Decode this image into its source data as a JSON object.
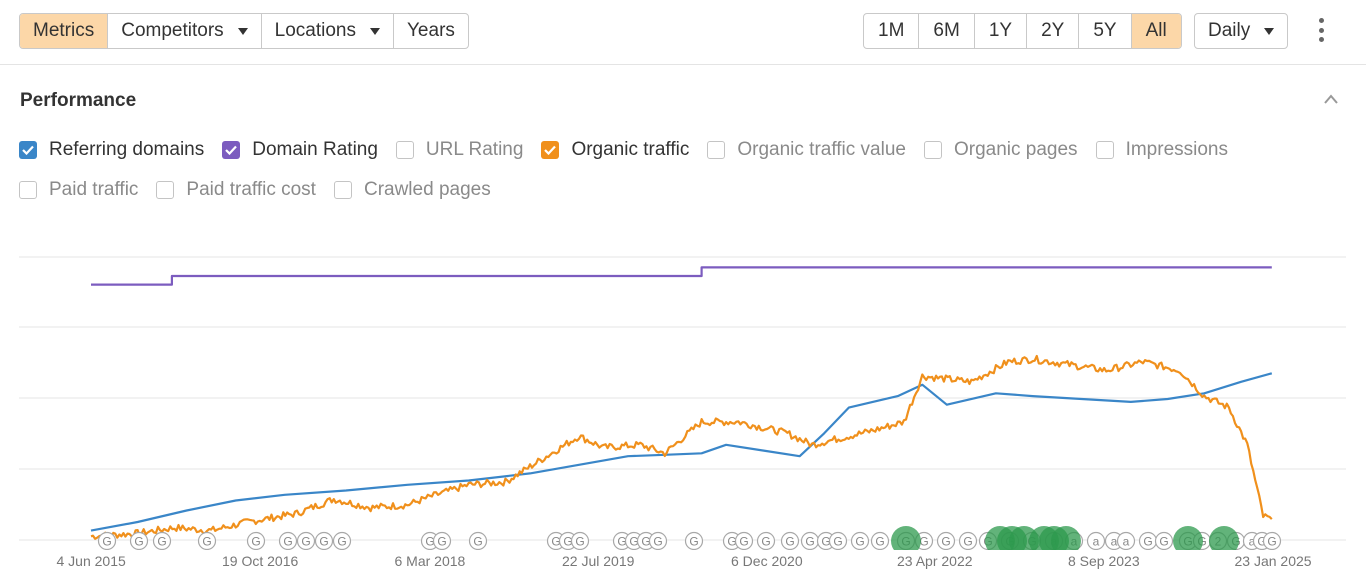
{
  "toolbar": {
    "left_tabs": [
      {
        "label": "Metrics",
        "active": true,
        "dropdown": false
      },
      {
        "label": "Competitors",
        "active": false,
        "dropdown": true
      },
      {
        "label": "Locations",
        "active": false,
        "dropdown": true
      },
      {
        "label": "Years",
        "active": false,
        "dropdown": false
      }
    ],
    "ranges": [
      {
        "label": "1M",
        "active": false
      },
      {
        "label": "6M",
        "active": false
      },
      {
        "label": "1Y",
        "active": false
      },
      {
        "label": "2Y",
        "active": false
      },
      {
        "label": "5Y",
        "active": false
      },
      {
        "label": "All",
        "active": true
      }
    ],
    "interval": "Daily",
    "more_icon": "kebab-vertical-icon"
  },
  "section": {
    "title": "Performance",
    "collapse_icon": "chevron-up-icon"
  },
  "metrics": [
    {
      "label": "Referring domains",
      "checked": true,
      "color": "#3a86c8"
    },
    {
      "label": "Domain Rating",
      "checked": true,
      "color": "#7c5cbf"
    },
    {
      "label": "URL Rating",
      "checked": false
    },
    {
      "label": "Organic traffic",
      "checked": true,
      "color": "#f0901c"
    },
    {
      "label": "Organic traffic value",
      "checked": false
    },
    {
      "label": "Organic pages",
      "checked": false
    },
    {
      "label": "Impressions",
      "checked": false
    },
    {
      "label": "Paid traffic",
      "checked": false
    },
    {
      "label": "Paid traffic cost",
      "checked": false
    },
    {
      "label": "Crawled pages",
      "checked": false
    }
  ],
  "colors": {
    "active_tab": "#fcd7a8",
    "grid": "#e6e6e6",
    "update_marker": "#2e9a4e"
  },
  "chart_data": {
    "type": "line",
    "x_ticks": [
      "4 Jun 2015",
      "19 Oct 2016",
      "6 Mar 2018",
      "22 Jul 2019",
      "6 Dec 2020",
      "23 Apr 2022",
      "8 Sep 2023",
      "23 Jan 2025"
    ],
    "y_ticks_shown": false,
    "grid": true,
    "series": [
      {
        "name": "Domain Rating",
        "color": "#7c5cbf",
        "points": [
          [
            2015.42,
            0.9
          ],
          [
            2016.08,
            0.9
          ],
          [
            2016.08,
            0.93
          ],
          [
            2020.4,
            0.93
          ],
          [
            2020.4,
            0.96
          ],
          [
            2025.05,
            0.96
          ]
        ]
      },
      {
        "name": "Referring domains",
        "color": "#3a86c8",
        "points": [
          [
            2015.42,
            0.04
          ],
          [
            2015.8,
            0.07
          ],
          [
            2016.2,
            0.11
          ],
          [
            2016.6,
            0.145
          ],
          [
            2017.0,
            0.165
          ],
          [
            2017.5,
            0.18
          ],
          [
            2018.0,
            0.2
          ],
          [
            2018.5,
            0.215
          ],
          [
            2019.0,
            0.24
          ],
          [
            2019.4,
            0.27
          ],
          [
            2019.8,
            0.3
          ],
          [
            2020.1,
            0.305
          ],
          [
            2020.4,
            0.31
          ],
          [
            2020.6,
            0.34
          ],
          [
            2020.9,
            0.32
          ],
          [
            2021.2,
            0.3
          ],
          [
            2021.4,
            0.38
          ],
          [
            2021.6,
            0.47
          ],
          [
            2022.0,
            0.51
          ],
          [
            2022.2,
            0.55
          ],
          [
            2022.4,
            0.48
          ],
          [
            2022.8,
            0.52
          ],
          [
            2023.1,
            0.51
          ],
          [
            2023.5,
            0.5
          ],
          [
            2023.9,
            0.49
          ],
          [
            2024.2,
            0.5
          ],
          [
            2024.5,
            0.52
          ],
          [
            2024.8,
            0.56
          ],
          [
            2025.05,
            0.59
          ]
        ]
      },
      {
        "name": "Organic traffic",
        "color": "#f0901c",
        "points": [
          [
            2015.42,
            0.02
          ],
          [
            2015.8,
            0.03
          ],
          [
            2016.1,
            0.05
          ],
          [
            2016.4,
            0.04
          ],
          [
            2016.7,
            0.07
          ],
          [
            2017.1,
            0.1
          ],
          [
            2017.4,
            0.15
          ],
          [
            2017.7,
            0.12
          ],
          [
            2018.0,
            0.13
          ],
          [
            2018.2,
            0.16
          ],
          [
            2018.5,
            0.2
          ],
          [
            2018.8,
            0.21
          ],
          [
            2019.1,
            0.29
          ],
          [
            2019.4,
            0.37
          ],
          [
            2019.6,
            0.33
          ],
          [
            2019.9,
            0.34
          ],
          [
            2020.1,
            0.31
          ],
          [
            2020.4,
            0.42
          ],
          [
            2020.7,
            0.42
          ],
          [
            2020.9,
            0.4
          ],
          [
            2021.1,
            0.38
          ],
          [
            2021.3,
            0.34
          ],
          [
            2021.6,
            0.37
          ],
          [
            2021.8,
            0.39
          ],
          [
            2022.05,
            0.42
          ],
          [
            2022.2,
            0.58
          ],
          [
            2022.6,
            0.56
          ],
          [
            2022.9,
            0.63
          ],
          [
            2023.1,
            0.64
          ],
          [
            2023.4,
            0.62
          ],
          [
            2023.7,
            0.6
          ],
          [
            2024.0,
            0.63
          ],
          [
            2024.3,
            0.6
          ],
          [
            2024.5,
            0.51
          ],
          [
            2024.7,
            0.47
          ],
          [
            2024.85,
            0.34
          ],
          [
            2024.98,
            0.09
          ],
          [
            2025.05,
            0.08
          ]
        ]
      }
    ],
    "annotation_markers": [
      "G",
      "G",
      "G",
      "G",
      "G",
      "G",
      "G",
      "G",
      "G",
      "G",
      "G",
      "G",
      "G",
      "G",
      "G",
      "G",
      "G",
      "G",
      "G",
      "G",
      "G",
      "G",
      "G",
      "G",
      "G",
      "G",
      "G",
      "G",
      "G",
      "G",
      "G",
      "G",
      "G",
      "G",
      "G",
      "G",
      "a",
      "a",
      "a",
      "a",
      "a",
      "G",
      "G",
      "G",
      "G",
      "2",
      "G",
      "a",
      "G",
      "G"
    ]
  }
}
